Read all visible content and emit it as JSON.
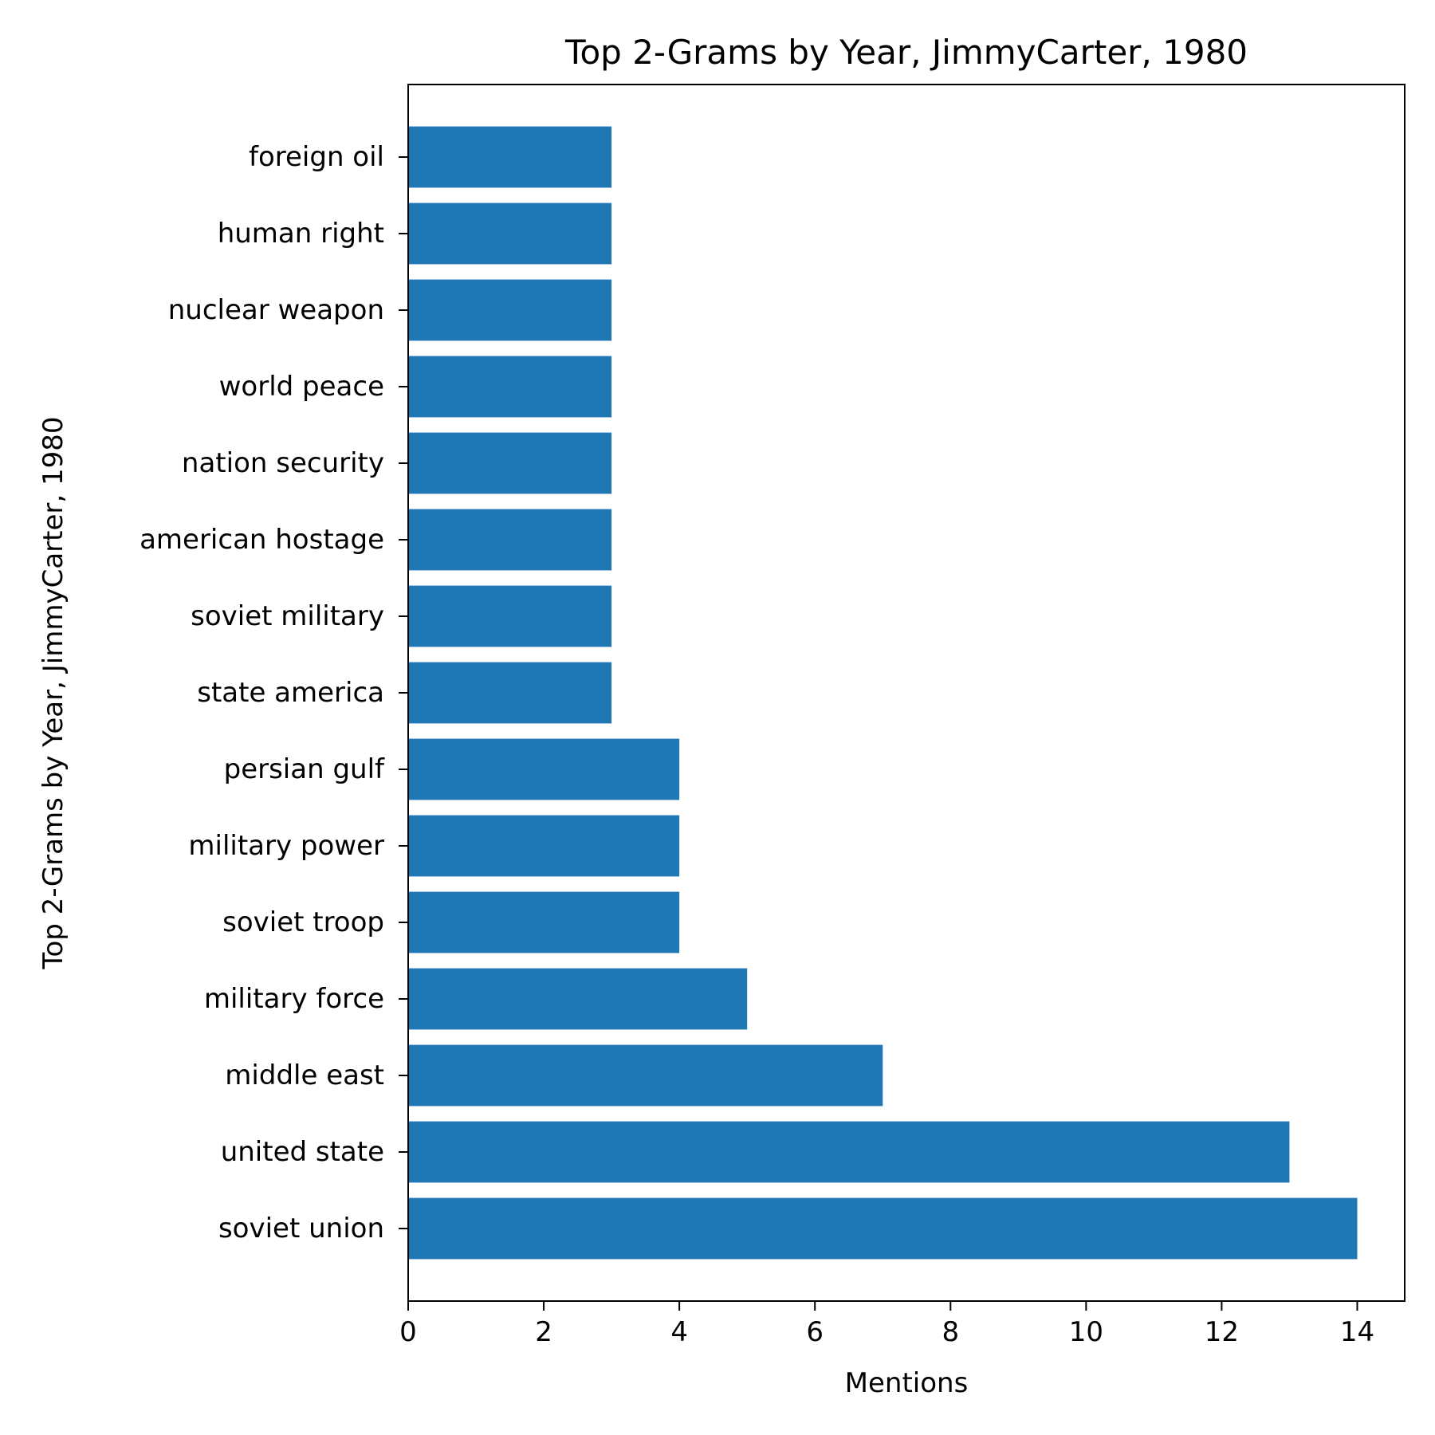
{
  "chart_data": {
    "type": "bar",
    "orientation": "horizontal",
    "title": "Top 2-Grams by Year, JimmyCarter, 1980",
    "xlabel": "Mentions",
    "ylabel": "Top 2-Grams by Year, JimmyCarter, 1980",
    "categories": [
      "soviet union",
      "united state",
      "middle east",
      "military force",
      "soviet troop",
      "military power",
      "persian gulf",
      "state america",
      "soviet military",
      "american hostage",
      "nation security",
      "world peace",
      "nuclear weapon",
      "human right",
      "foreign oil"
    ],
    "values": [
      14,
      13,
      7,
      5,
      4,
      4,
      4,
      3,
      3,
      3,
      3,
      3,
      3,
      3,
      3
    ],
    "xlim": [
      0,
      14.7
    ],
    "xticks": [
      0,
      2,
      4,
      6,
      8,
      10,
      12,
      14
    ],
    "bar_color": "#1f77b4",
    "grid": false,
    "legend": "none"
  }
}
